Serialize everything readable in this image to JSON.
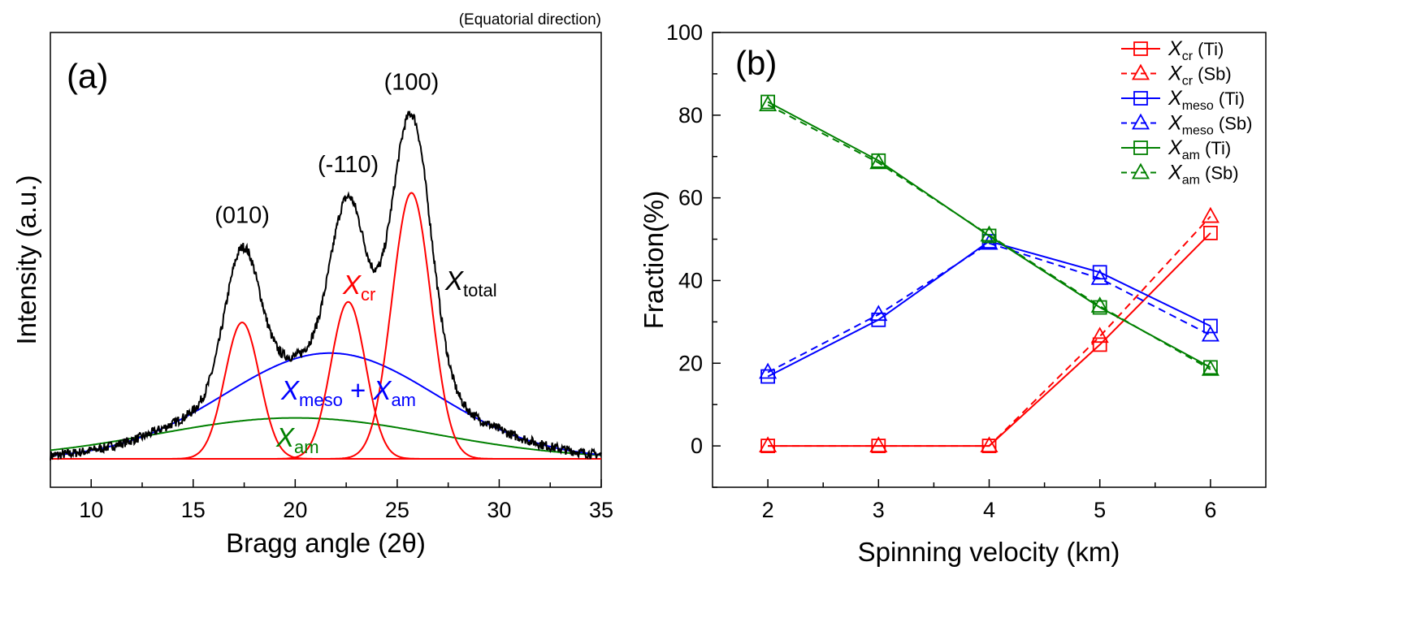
{
  "chart_data": [
    {
      "panel": "(a)",
      "type": "line",
      "note": "(Equatorial direction)",
      "xlabel": "Bragg angle (2θ)",
      "ylabel": "Intensity (a.u.)",
      "xlim": [
        8,
        35
      ],
      "xticks": [
        "10",
        "15",
        "20",
        "25",
        "30",
        "35"
      ],
      "peak_labels": [
        {
          "text": "(010)",
          "x": 17.4
        },
        {
          "text": "(-110)",
          "x": 22.6
        },
        {
          "text": "(100)",
          "x": 25.7
        }
      ],
      "curve_labels": {
        "total": {
          "main": "X",
          "sub": "total"
        },
        "cr": {
          "main": "X",
          "sub": "cr"
        },
        "meso_am": {
          "main1": "X",
          "sub1": "meso",
          "plus": " + ",
          "main2": "X",
          "sub2": "am"
        },
        "am": {
          "main": "X",
          "sub": "am"
        }
      },
      "colors": {
        "total": "#000000",
        "cr": "#ff0000",
        "meso": "#0000ff",
        "am": "#008000"
      },
      "components": {
        "cr_peaks": [
          {
            "center": 17.4,
            "height": 0.4,
            "width": 0.85
          },
          {
            "center": 22.6,
            "height": 0.46,
            "width": 0.85
          },
          {
            "center": 25.7,
            "height": 0.78,
            "width": 0.95
          }
        ],
        "meso_plus_am": {
          "center": 21.7,
          "height": 0.31,
          "width": 5.2
        },
        "am": {
          "center": 20.0,
          "height": 0.12,
          "width": 6.8
        }
      }
    },
    {
      "panel": "(b)",
      "type": "line",
      "xlabel": "Spinning velocity (km)",
      "ylabel": "Fraction(%)",
      "xlim": [
        1.5,
        6.5
      ],
      "ylim": [
        -10,
        100
      ],
      "xticks": [
        "2",
        "3",
        "4",
        "5",
        "6"
      ],
      "yticks": [
        "0",
        "20",
        "40",
        "60",
        "80",
        "100"
      ],
      "x": [
        2,
        3,
        4,
        5,
        6
      ],
      "series": [
        {
          "name_main": "X",
          "name_sub": "cr",
          "name_suffix": " (Ti)",
          "color": "#ff0000",
          "marker": "square",
          "dash": false,
          "values": [
            0,
            0,
            0,
            24.5,
            51.5
          ]
        },
        {
          "name_main": "X",
          "name_sub": "cr",
          "name_suffix": " (Sb)",
          "color": "#ff0000",
          "marker": "triangle",
          "dash": true,
          "values": [
            0,
            0,
            0,
            26.5,
            55.5
          ]
        },
        {
          "name_main": "X",
          "name_sub": "meso",
          "name_suffix": " (Ti)",
          "color": "#0000ff",
          "marker": "square",
          "dash": false,
          "values": [
            16.8,
            30.5,
            49.5,
            42.0,
            29.0
          ]
        },
        {
          "name_main": "X",
          "name_sub": "meso",
          "name_suffix": " (Sb)",
          "color": "#0000ff",
          "marker": "triangle",
          "dash": true,
          "values": [
            17.8,
            31.8,
            49.0,
            40.5,
            26.8
          ]
        },
        {
          "name_main": "X",
          "name_sub": "am",
          "name_suffix": " (Ti)",
          "color": "#008000",
          "marker": "square",
          "dash": false,
          "values": [
            83.2,
            69.0,
            50.8,
            33.5,
            19.0
          ]
        },
        {
          "name_main": "X",
          "name_sub": "am",
          "name_suffix": " (Sb)",
          "color": "#008000",
          "marker": "triangle",
          "dash": true,
          "values": [
            82.5,
            68.5,
            51.0,
            33.8,
            18.5
          ]
        }
      ]
    }
  ]
}
